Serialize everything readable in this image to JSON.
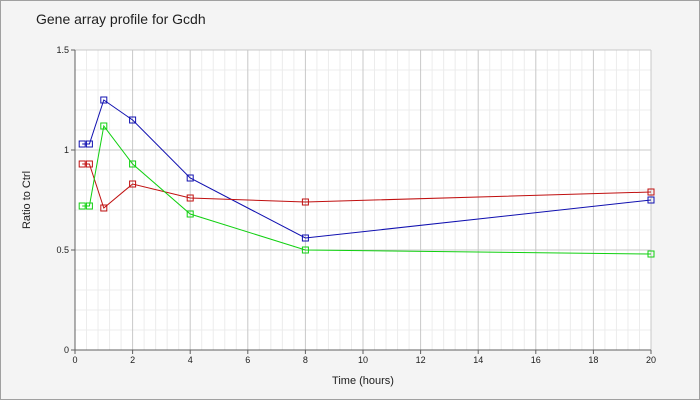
{
  "chart_data": {
    "type": "line",
    "title": "Gene array profile for Gcdh",
    "xlabel": "Time (hours)",
    "ylabel": "Ratio to Ctrl",
    "xlim": [
      0,
      20
    ],
    "ylim": [
      0,
      1.5
    ],
    "x_ticks": [
      0,
      2,
      4,
      6,
      8,
      10,
      12,
      14,
      16,
      18,
      20
    ],
    "y_ticks": [
      0,
      0.5,
      1,
      1.5
    ],
    "y_tick_labels": [
      "0",
      "0.5",
      "1",
      "1.5"
    ],
    "grid": true,
    "marker": "square",
    "series": [
      {
        "color": "#1010b0",
        "x": [
          0.25,
          0.5,
          1,
          2,
          4,
          8,
          20
        ],
        "y": [
          1.03,
          1.03,
          1.25,
          1.15,
          0.86,
          0.56,
          0.75
        ]
      },
      {
        "color": "#c01010",
        "x": [
          0.25,
          0.5,
          1,
          2,
          4,
          8,
          20
        ],
        "y": [
          0.93,
          0.93,
          0.71,
          0.83,
          0.76,
          0.74,
          0.79
        ]
      },
      {
        "color": "#10d010",
        "x": [
          0.25,
          0.5,
          1,
          2,
          4,
          8,
          20
        ],
        "y": [
          0.72,
          0.72,
          1.12,
          0.93,
          0.68,
          0.5,
          0.48
        ]
      }
    ]
  }
}
